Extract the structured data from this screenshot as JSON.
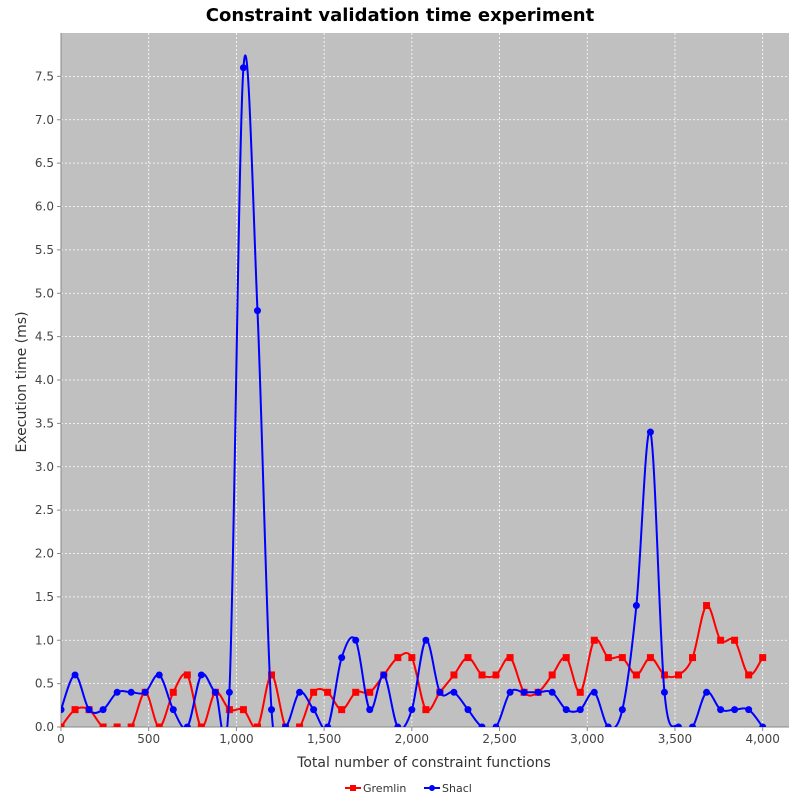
{
  "chart_data": {
    "type": "line",
    "title": "Constraint validation time experiment",
    "xlabel": "Total number of constraint functions",
    "ylabel": "Execution time (ms)",
    "xlim": [
      0,
      4150
    ],
    "ylim": [
      0,
      8.0
    ],
    "xticks": [
      0,
      500,
      1000,
      1500,
      2000,
      2500,
      3000,
      3500,
      4000
    ],
    "xtick_labels": [
      "0",
      "500",
      "1,000",
      "1,500",
      "2,000",
      "2,500",
      "3,000",
      "3,500",
      "4,000"
    ],
    "yticks": [
      0.0,
      0.5,
      1.0,
      1.5,
      2.0,
      2.5,
      3.0,
      3.5,
      4.0,
      4.5,
      5.0,
      5.5,
      6.0,
      6.5,
      7.0,
      7.5
    ],
    "ytick_labels": [
      "0.0",
      "0.5",
      "1.0",
      "1.5",
      "2.0",
      "2.5",
      "3.0",
      "3.5",
      "4.0",
      "4.5",
      "5.0",
      "5.5",
      "6.0",
      "6.5",
      "7.0",
      "7.5"
    ],
    "grid": true,
    "legend_position": "bottom-center",
    "background_color": "#c0c0c0",
    "series": [
      {
        "name": "Gremlin",
        "color": "#ff0000",
        "marker": "square",
        "x": [
          0,
          80,
          160,
          240,
          320,
          400,
          480,
          560,
          640,
          720,
          800,
          880,
          960,
          1040,
          1120,
          1200,
          1280,
          1360,
          1440,
          1520,
          1600,
          1680,
          1760,
          1840,
          1920,
          2000,
          2080,
          2160,
          2240,
          2320,
          2400,
          2480,
          2560,
          2640,
          2720,
          2800,
          2880,
          2960,
          3040,
          3120,
          3200,
          3280,
          3360,
          3440,
          3520,
          3600,
          3680,
          3760,
          3840,
          3920,
          4000
        ],
        "y": [
          0.0,
          0.2,
          0.2,
          0.0,
          0.0,
          0.0,
          0.4,
          0.0,
          0.4,
          0.6,
          0.0,
          0.4,
          0.2,
          0.2,
          0.0,
          0.6,
          0.0,
          0.0,
          0.4,
          0.4,
          0.2,
          0.4,
          0.4,
          0.6,
          0.8,
          0.8,
          0.2,
          0.4,
          0.6,
          0.8,
          0.6,
          0.6,
          0.8,
          0.4,
          0.4,
          0.6,
          0.8,
          0.4,
          1.0,
          0.8,
          0.8,
          0.6,
          0.8,
          0.6,
          0.6,
          0.8,
          1.4,
          1.0,
          1.0,
          0.6,
          0.8
        ]
      },
      {
        "name": "Shacl",
        "color": "#0000ff",
        "marker": "circle",
        "x": [
          0,
          80,
          160,
          240,
          320,
          400,
          480,
          560,
          640,
          720,
          800,
          880,
          960,
          1040,
          1120,
          1200,
          1280,
          1360,
          1440,
          1520,
          1600,
          1680,
          1760,
          1840,
          1920,
          2000,
          2080,
          2160,
          2240,
          2320,
          2400,
          2480,
          2560,
          2640,
          2720,
          2800,
          2880,
          2960,
          3040,
          3120,
          3200,
          3280,
          3360,
          3440,
          3520,
          3600,
          3680,
          3760,
          3840,
          3920,
          4000
        ],
        "y": [
          0.2,
          0.6,
          0.2,
          0.2,
          0.4,
          0.4,
          0.4,
          0.6,
          0.2,
          0.0,
          0.6,
          0.4,
          0.4,
          7.6,
          4.8,
          0.2,
          0.0,
          0.4,
          0.2,
          0.0,
          0.8,
          1.0,
          0.2,
          0.6,
          0.0,
          0.2,
          1.0,
          0.4,
          0.4,
          0.2,
          0.0,
          0.0,
          0.4,
          0.4,
          0.4,
          0.4,
          0.2,
          0.2,
          0.4,
          0.0,
          0.2,
          1.4,
          3.4,
          0.4,
          0.0,
          0.0,
          0.4,
          0.2,
          0.2,
          0.2,
          0.0
        ]
      }
    ]
  }
}
